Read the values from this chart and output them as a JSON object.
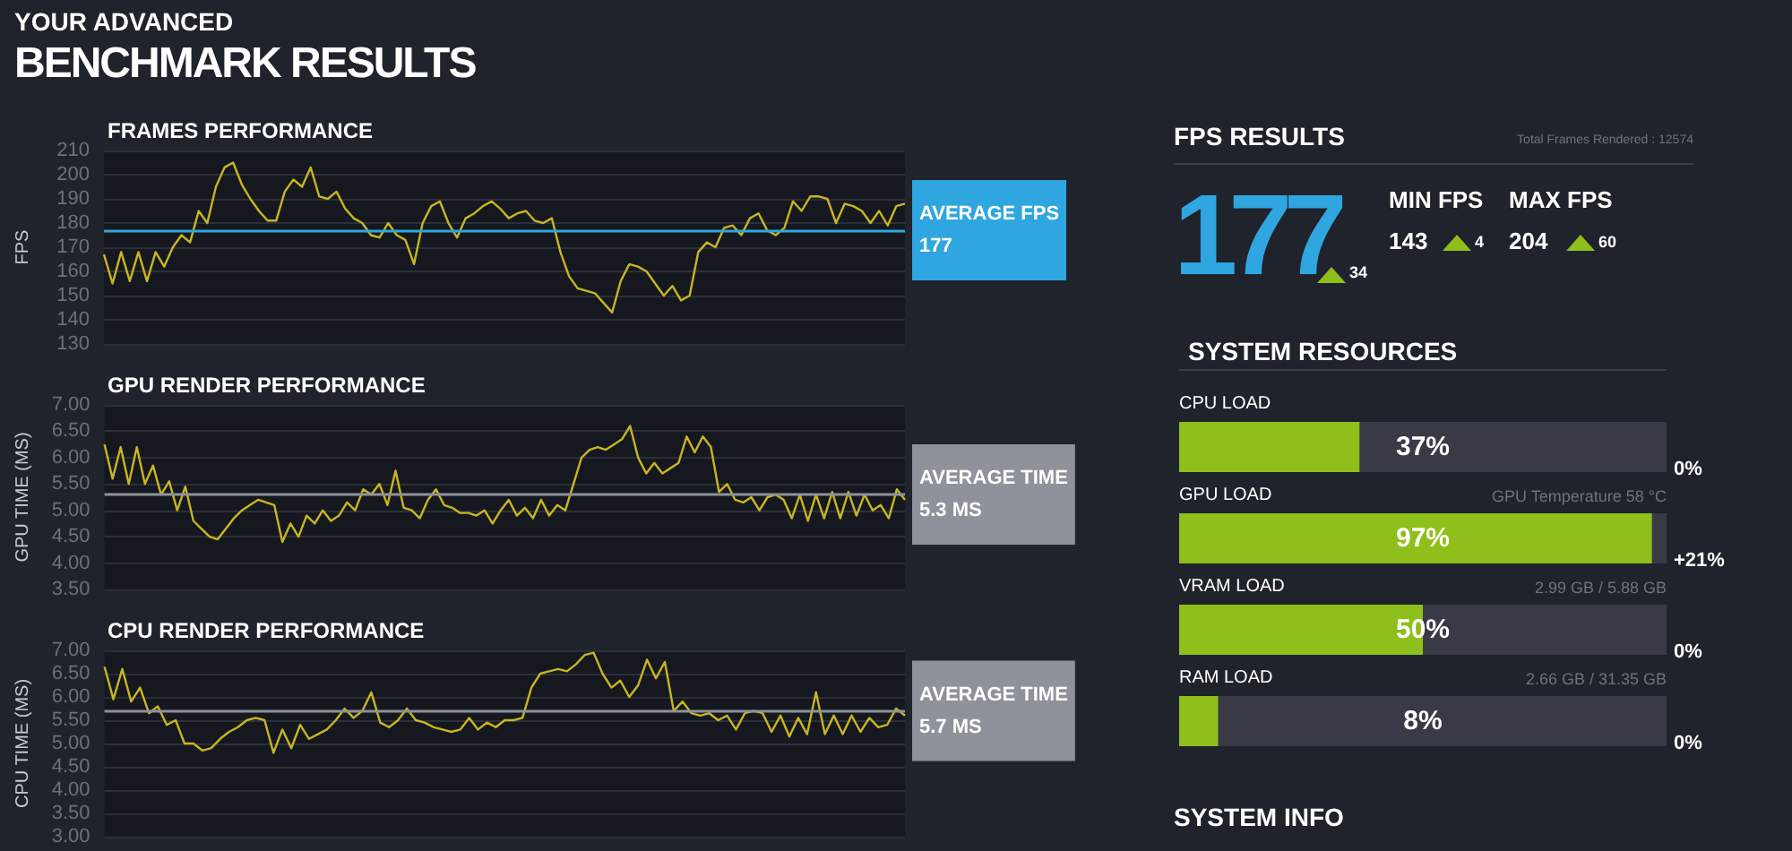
{
  "chart_data": [
    {
      "type": "other",
      "title": "YOUR ADVANCED",
      "subtitle": "BENCHMARK RESULTS"
    },
    {
      "type": "line",
      "title": "FRAMES PERFORMANCE",
      "ylabel": "FPS",
      "categories": [
        null,
        null,
        null,
        null,
        null,
        null,
        null,
        null,
        null,
        null,
        null,
        null,
        null,
        null,
        null,
        null,
        null,
        null,
        null,
        null,
        null,
        null,
        null,
        null,
        null,
        null,
        null,
        null,
        null,
        null,
        null,
        null,
        null,
        null,
        null,
        null,
        null,
        null,
        null,
        null,
        null,
        null,
        null,
        null,
        null,
        null,
        null,
        null,
        null,
        null,
        null,
        null,
        null,
        null,
        null,
        null,
        null,
        null,
        null,
        null,
        null,
        null,
        null,
        null,
        null,
        null,
        null,
        null,
        null,
        null,
        null,
        null,
        null,
        null,
        null,
        null,
        null,
        null,
        null,
        null,
        null,
        null,
        null,
        null,
        null,
        null,
        null,
        null,
        null,
        null,
        null,
        null,
        null,
        null
      ],
      "series": [
        {
          "color": "#c9b521",
          "values": [
            167,
            155,
            168,
            156,
            168,
            156,
            168,
            162,
            170,
            175,
            172,
            185,
            180,
            195,
            203,
            205,
            196,
            190,
            185,
            181,
            181,
            193,
            198,
            195,
            203,
            191,
            190,
            193,
            186,
            182,
            180,
            175,
            174,
            180,
            175,
            173,
            163,
            180,
            187,
            189,
            180,
            174,
            182,
            184,
            187,
            189,
            186,
            182,
            184,
            185,
            181,
            180,
            182,
            168,
            158,
            153,
            152,
            151,
            147,
            143,
            156,
            163,
            162,
            160,
            155,
            150,
            154,
            148,
            150,
            168,
            172,
            170,
            178,
            179,
            175,
            182,
            184,
            177,
            175,
            178,
            189,
            185,
            191,
            191,
            190,
            180,
            188,
            187,
            185,
            180,
            185,
            179,
            187,
            188
          ]
        }
      ],
      "ylim": [
        130,
        210
      ],
      "yticks": [
        130,
        140,
        150,
        160,
        170,
        180,
        190,
        200,
        210
      ],
      "grid": "y",
      "tick_labels": "y",
      "ref_lines": [
        {
          "axis": "y",
          "value": 177,
          "label": "AVERAGE FPS 177",
          "color": "#2fa6e0"
        }
      ]
    },
    {
      "type": "line",
      "title": "GPU RENDER PERFORMANCE",
      "ylabel": "GPU TIME (MS)",
      "categories": [
        null,
        null,
        null,
        null,
        null,
        null,
        null,
        null,
        null,
        null,
        null,
        null,
        null,
        null,
        null,
        null,
        null,
        null,
        null,
        null,
        null,
        null,
        null,
        null,
        null,
        null,
        null,
        null,
        null,
        null,
        null,
        null,
        null,
        null,
        null,
        null,
        null,
        null,
        null,
        null,
        null,
        null,
        null,
        null,
        null,
        null,
        null,
        null,
        null,
        null,
        null,
        null,
        null,
        null,
        null,
        null,
        null,
        null,
        null,
        null,
        null,
        null,
        null,
        null,
        null,
        null,
        null,
        null,
        null,
        null,
        null,
        null,
        null,
        null,
        null,
        null,
        null,
        null,
        null,
        null,
        null,
        null,
        null,
        null,
        null,
        null,
        null,
        null,
        null,
        null,
        null,
        null,
        null,
        null,
        null,
        null,
        null,
        null,
        null,
        null
      ],
      "series": [
        {
          "color": "#c9b521",
          "values": [
            6.25,
            5.6,
            6.2,
            5.5,
            6.2,
            5.5,
            5.85,
            5.3,
            5.55,
            5.0,
            5.45,
            4.8,
            4.65,
            4.5,
            4.45,
            4.65,
            4.85,
            5.0,
            5.1,
            5.2,
            5.15,
            5.1,
            4.4,
            4.75,
            4.5,
            4.9,
            4.75,
            5.0,
            4.8,
            4.9,
            5.15,
            5.0,
            5.4,
            5.3,
            5.5,
            5.1,
            5.75,
            5.05,
            5.0,
            4.85,
            5.2,
            5.4,
            5.1,
            5.05,
            4.95,
            4.95,
            4.9,
            5.0,
            4.75,
            5.0,
            5.2,
            4.9,
            5.05,
            4.85,
            5.2,
            4.9,
            5.1,
            5.0,
            5.5,
            6.0,
            6.15,
            6.2,
            6.15,
            6.25,
            6.35,
            6.6,
            6.0,
            5.7,
            5.9,
            5.7,
            5.8,
            5.9,
            6.4,
            6.1,
            6.4,
            6.2,
            5.35,
            5.5,
            5.2,
            5.15,
            5.25,
            5.0,
            5.25,
            5.3,
            5.2,
            4.85,
            5.3,
            4.8,
            5.3,
            4.85,
            5.35,
            4.85,
            5.35,
            4.9,
            5.3,
            5.0,
            5.1,
            4.85,
            5.4,
            5.2
          ]
        }
      ],
      "ylim": [
        3.5,
        7
      ],
      "yticks": [
        {
          "value": 3.5,
          "label": "3.50"
        },
        {
          "value": 4,
          "label": "4.00"
        },
        {
          "value": 4.5,
          "label": "4.50"
        },
        {
          "value": 5,
          "label": "5.00"
        },
        {
          "value": 5.5,
          "label": "5.50"
        },
        {
          "value": 6,
          "label": "6.00"
        },
        {
          "value": 6.5,
          "label": "6.50"
        },
        {
          "value": 7,
          "label": "7.00"
        }
      ],
      "grid": "y",
      "tick_labels": "y",
      "ref_lines": [
        {
          "axis": "y",
          "value": 5.3,
          "label": "AVERAGE TIME 5.3 MS",
          "color": "#8e929a"
        }
      ]
    },
    {
      "type": "line",
      "title": "CPU RENDER PERFORMANCE",
      "ylabel": "CPU TIME (MS)",
      "categories": [
        null,
        null,
        null,
        null,
        null,
        null,
        null,
        null,
        null,
        null,
        null,
        null,
        null,
        null,
        null,
        null,
        null,
        null,
        null,
        null,
        null,
        null,
        null,
        null,
        null,
        null,
        null,
        null,
        null,
        null,
        null,
        null,
        null,
        null,
        null,
        null,
        null,
        null,
        null,
        null,
        null,
        null,
        null,
        null,
        null,
        null,
        null,
        null,
        null,
        null,
        null,
        null,
        null,
        null,
        null,
        null,
        null,
        null,
        null,
        null,
        null,
        null,
        null,
        null,
        null,
        null,
        null,
        null,
        null,
        null,
        null,
        null,
        null,
        null,
        null,
        null,
        null,
        null,
        null,
        null,
        null,
        null,
        null,
        null,
        null,
        null,
        null,
        null,
        null,
        null,
        null
      ],
      "series": [
        {
          "color": "#c9b521",
          "values": [
            6.65,
            5.95,
            6.6,
            5.9,
            6.2,
            5.65,
            5.8,
            5.4,
            5.5,
            5.0,
            5.0,
            4.85,
            4.9,
            5.1,
            5.25,
            5.35,
            5.5,
            5.55,
            5.5,
            4.8,
            5.3,
            4.9,
            5.4,
            5.1,
            5.2,
            5.3,
            5.5,
            5.75,
            5.55,
            5.7,
            6.1,
            5.45,
            5.35,
            5.5,
            5.75,
            5.5,
            5.45,
            5.35,
            5.3,
            5.25,
            5.3,
            5.55,
            5.3,
            5.45,
            5.35,
            5.5,
            5.5,
            5.55,
            6.2,
            6.5,
            6.55,
            6.6,
            6.55,
            6.7,
            6.9,
            6.95,
            6.5,
            6.2,
            6.35,
            6.0,
            6.25,
            6.8,
            6.4,
            6.75,
            5.7,
            5.9,
            5.65,
            5.6,
            5.65,
            5.5,
            5.6,
            5.3,
            5.65,
            5.7,
            5.65,
            5.25,
            5.6,
            5.15,
            5.55,
            5.2,
            6.1,
            5.2,
            5.6,
            5.2,
            5.6,
            5.25,
            5.55,
            5.35,
            5.4,
            5.75,
            5.6
          ]
        }
      ],
      "ylim": [
        3,
        7
      ],
      "yticks": [
        {
          "value": 3,
          "label": "3.00"
        },
        {
          "value": 3.5,
          "label": "3.50"
        },
        {
          "value": 4,
          "label": "4.00"
        },
        {
          "value": 4.5,
          "label": "4.50"
        },
        {
          "value": 5,
          "label": "5.00"
        },
        {
          "value": 5.5,
          "label": "5.50"
        },
        {
          "value": 6,
          "label": "6.00"
        },
        {
          "value": 6.5,
          "label": "6.50"
        },
        {
          "value": 7,
          "label": "7.00"
        }
      ],
      "grid": "y",
      "tick_labels": "y",
      "ref_lines": [
        {
          "axis": "y",
          "value": 5.7,
          "label": "AVERAGE TIME 5.7 MS",
          "color": "#8e929a"
        }
      ]
    },
    {
      "type": "other",
      "title": "FPS RESULTS",
      "annotations": [
        "Total Frames Rendered : 12574",
        "177",
        "34",
        "MIN FPS",
        "143",
        "4",
        "MAX FPS",
        "204",
        "60"
      ]
    },
    {
      "type": "bar",
      "title": "SYSTEM RESOURCES",
      "orientation": "horizontal",
      "categories": [
        "CPU LOAD",
        "GPU LOAD",
        "VRAM LOAD",
        "RAM LOAD"
      ],
      "values": [
        37,
        97,
        50,
        8
      ],
      "color": "#8fbf1a",
      "xlim": [
        0,
        100
      ],
      "value_labels": [
        "37%",
        "97%",
        "50%",
        "8%"
      ],
      "annotations": [
        "0%",
        "+21%",
        "0%",
        "0%",
        "GPU Temperature 58 °C",
        "2.99 GB / 5.88 GB",
        "2.66 GB / 31.35 GB"
      ]
    },
    {
      "type": "other",
      "title": "SYSTEM INFO"
    }
  ]
}
